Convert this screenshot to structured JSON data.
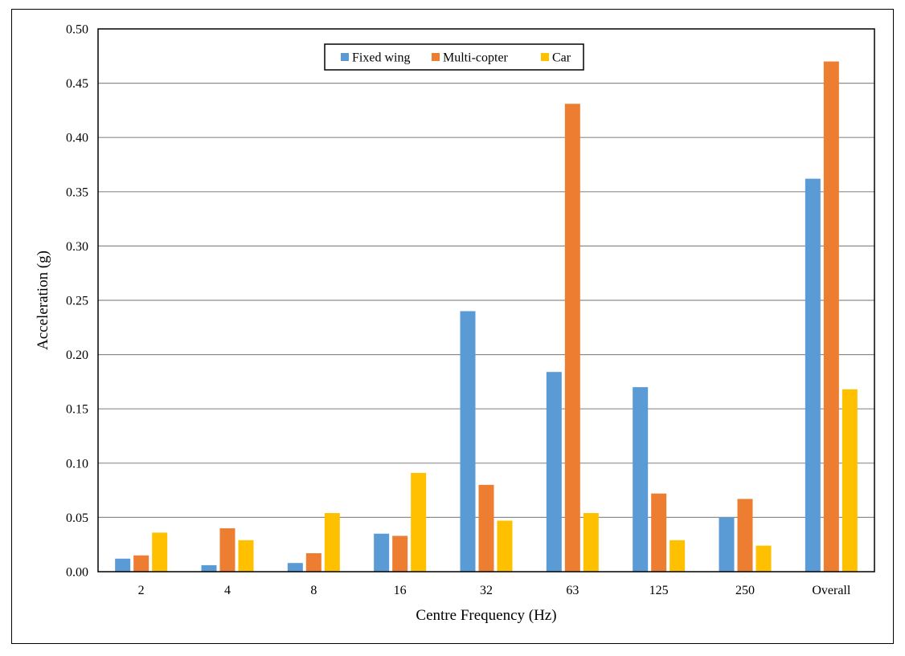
{
  "chart_data": {
    "type": "bar",
    "title": "",
    "xlabel": "Centre Frequency (Hz)",
    "ylabel": "Acceleration (g)",
    "categories": [
      "2",
      "4",
      "8",
      "16",
      "32",
      "63",
      "125",
      "250",
      "Overall"
    ],
    "ylim": [
      0,
      0.5
    ],
    "yticks": [
      "0.00",
      "0.05",
      "0.10",
      "0.15",
      "0.20",
      "0.25",
      "0.30",
      "0.35",
      "0.40",
      "0.45",
      "0.50"
    ],
    "grid": true,
    "legend_position": "top-center",
    "series": [
      {
        "name": "Fixed wing",
        "color": "#5B9BD5",
        "values": [
          0.012,
          0.006,
          0.008,
          0.035,
          0.24,
          0.184,
          0.17,
          0.05,
          0.362
        ]
      },
      {
        "name": "Multi-copter",
        "color": "#ED7D31",
        "values": [
          0.015,
          0.04,
          0.017,
          0.033,
          0.08,
          0.431,
          0.072,
          0.067,
          0.47
        ]
      },
      {
        "name": "Car",
        "color": "#FFC000",
        "values": [
          0.036,
          0.029,
          0.054,
          0.091,
          0.047,
          0.054,
          0.029,
          0.024,
          0.168
        ]
      }
    ]
  }
}
